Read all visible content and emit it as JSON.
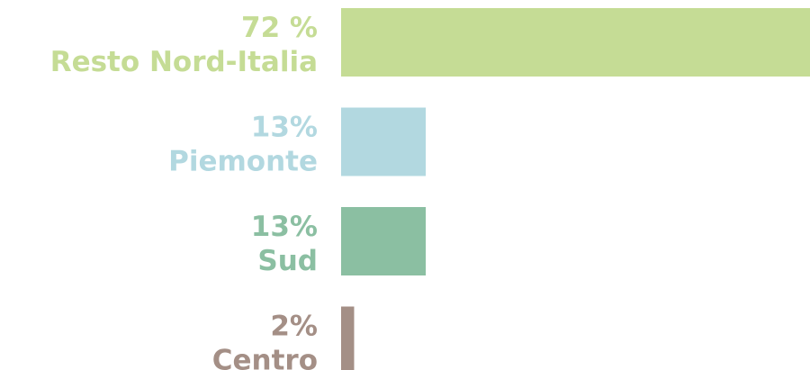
{
  "chart_data": {
    "type": "bar",
    "orientation": "horizontal",
    "categories": [
      "Resto Nord-Italia",
      "Piemonte",
      "Sud",
      "Centro"
    ],
    "values": [
      72,
      13,
      13,
      2
    ],
    "value_labels": [
      "72 %",
      "13%",
      "13%",
      "2%"
    ],
    "colors": [
      "#c5dc95",
      "#b2d8e0",
      "#8bbfa2",
      "#a48f86"
    ]
  }
}
